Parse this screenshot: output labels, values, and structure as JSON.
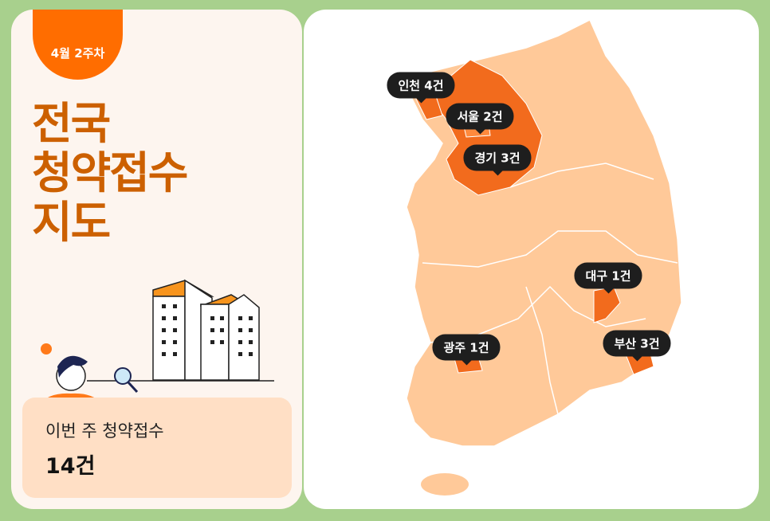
{
  "badge": "4월 2주차",
  "title": [
    "전국",
    "청약접수",
    "지도"
  ],
  "summary": {
    "label": "이번 주 청약접수",
    "value": "14건"
  },
  "colors": {
    "frame": "#a8d08d",
    "accent": "#ff6d00",
    "title": "#cc6000",
    "map_base": "#ffc999",
    "map_highlight": "#f26b1d",
    "label_bg": "#1e1e1e"
  },
  "regions": [
    {
      "name": "인천",
      "label": "인천 4건",
      "count": 4
    },
    {
      "name": "서울",
      "label": "서울 2건",
      "count": 2
    },
    {
      "name": "경기",
      "label": "경기 3건",
      "count": 3
    },
    {
      "name": "대구",
      "label": "대구 1건",
      "count": 1
    },
    {
      "name": "광주",
      "label": "광주 1건",
      "count": 1
    },
    {
      "name": "부산",
      "label": "부산 3건",
      "count": 3
    }
  ]
}
